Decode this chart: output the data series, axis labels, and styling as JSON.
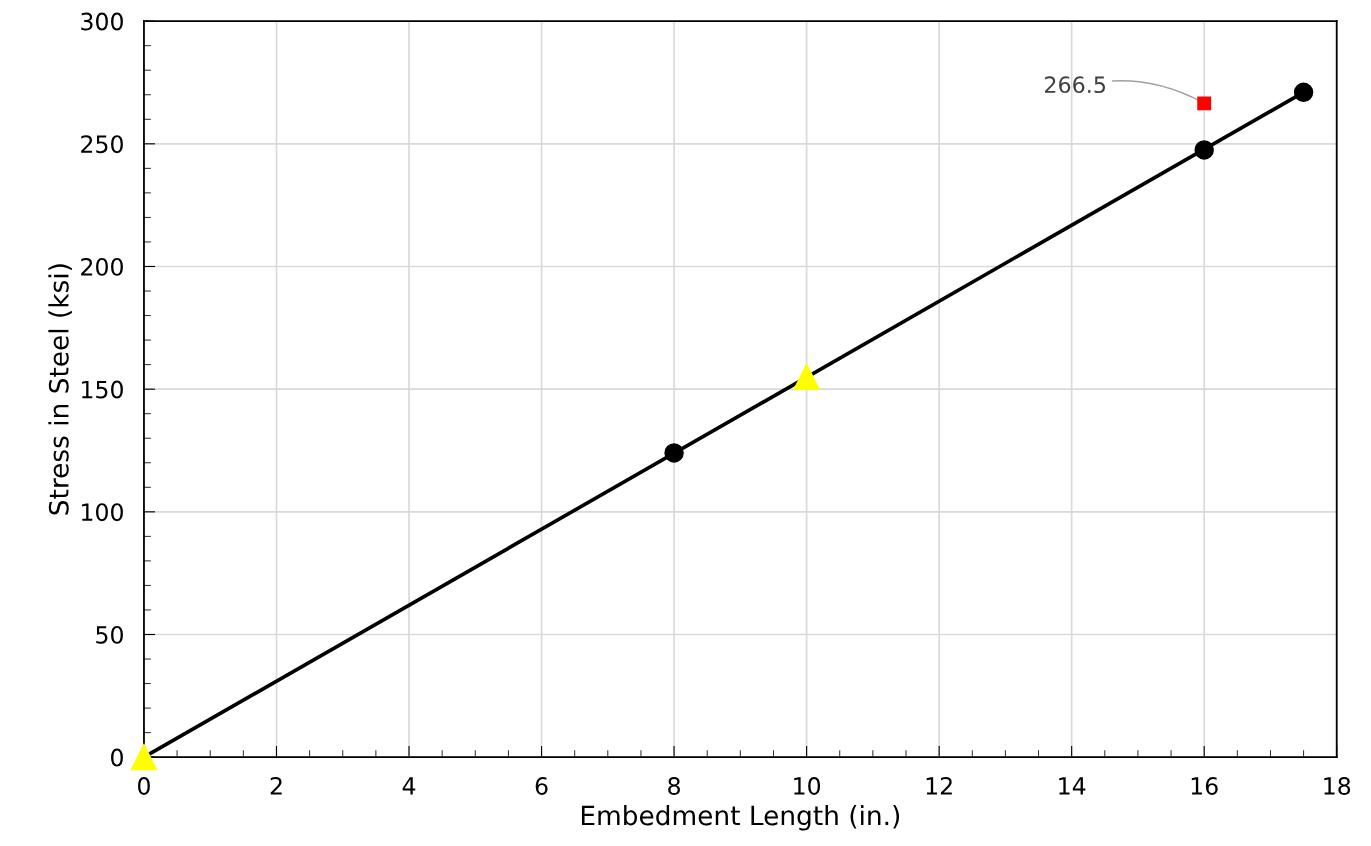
{
  "chart_data": {
    "type": "line",
    "xlabel": "Embedment Length (in.)",
    "ylabel": "Stress in Steel (ksi)",
    "xlim": [
      0,
      18
    ],
    "ylim": [
      0,
      300
    ],
    "xticks": [
      0,
      2,
      4,
      6,
      8,
      10,
      12,
      14,
      16,
      18
    ],
    "yticks": [
      0,
      50,
      100,
      150,
      200,
      250,
      300
    ],
    "grid": true,
    "legend": false,
    "series": [
      {
        "color": "#000000",
        "marker": "none",
        "line_style": "solid",
        "x": [
          0,
          17.5
        ],
        "values": [
          0,
          271
        ]
      },
      {
        "type": "scatter",
        "color": "#000000",
        "marker": "circle",
        "x": [
          8,
          16,
          17.5
        ],
        "values": [
          124,
          247.5,
          271
        ]
      },
      {
        "type": "scatter",
        "color": "#ffff00",
        "marker": "triangle",
        "x": [
          0,
          10
        ],
        "values": [
          0,
          155
        ]
      },
      {
        "type": "scatter",
        "color": "#ff0000",
        "marker": "square",
        "x": [
          16
        ],
        "values": [
          266.5
        ]
      }
    ],
    "annotations": [
      {
        "text": "266.5",
        "x": 16,
        "y": 266.5
      }
    ]
  }
}
